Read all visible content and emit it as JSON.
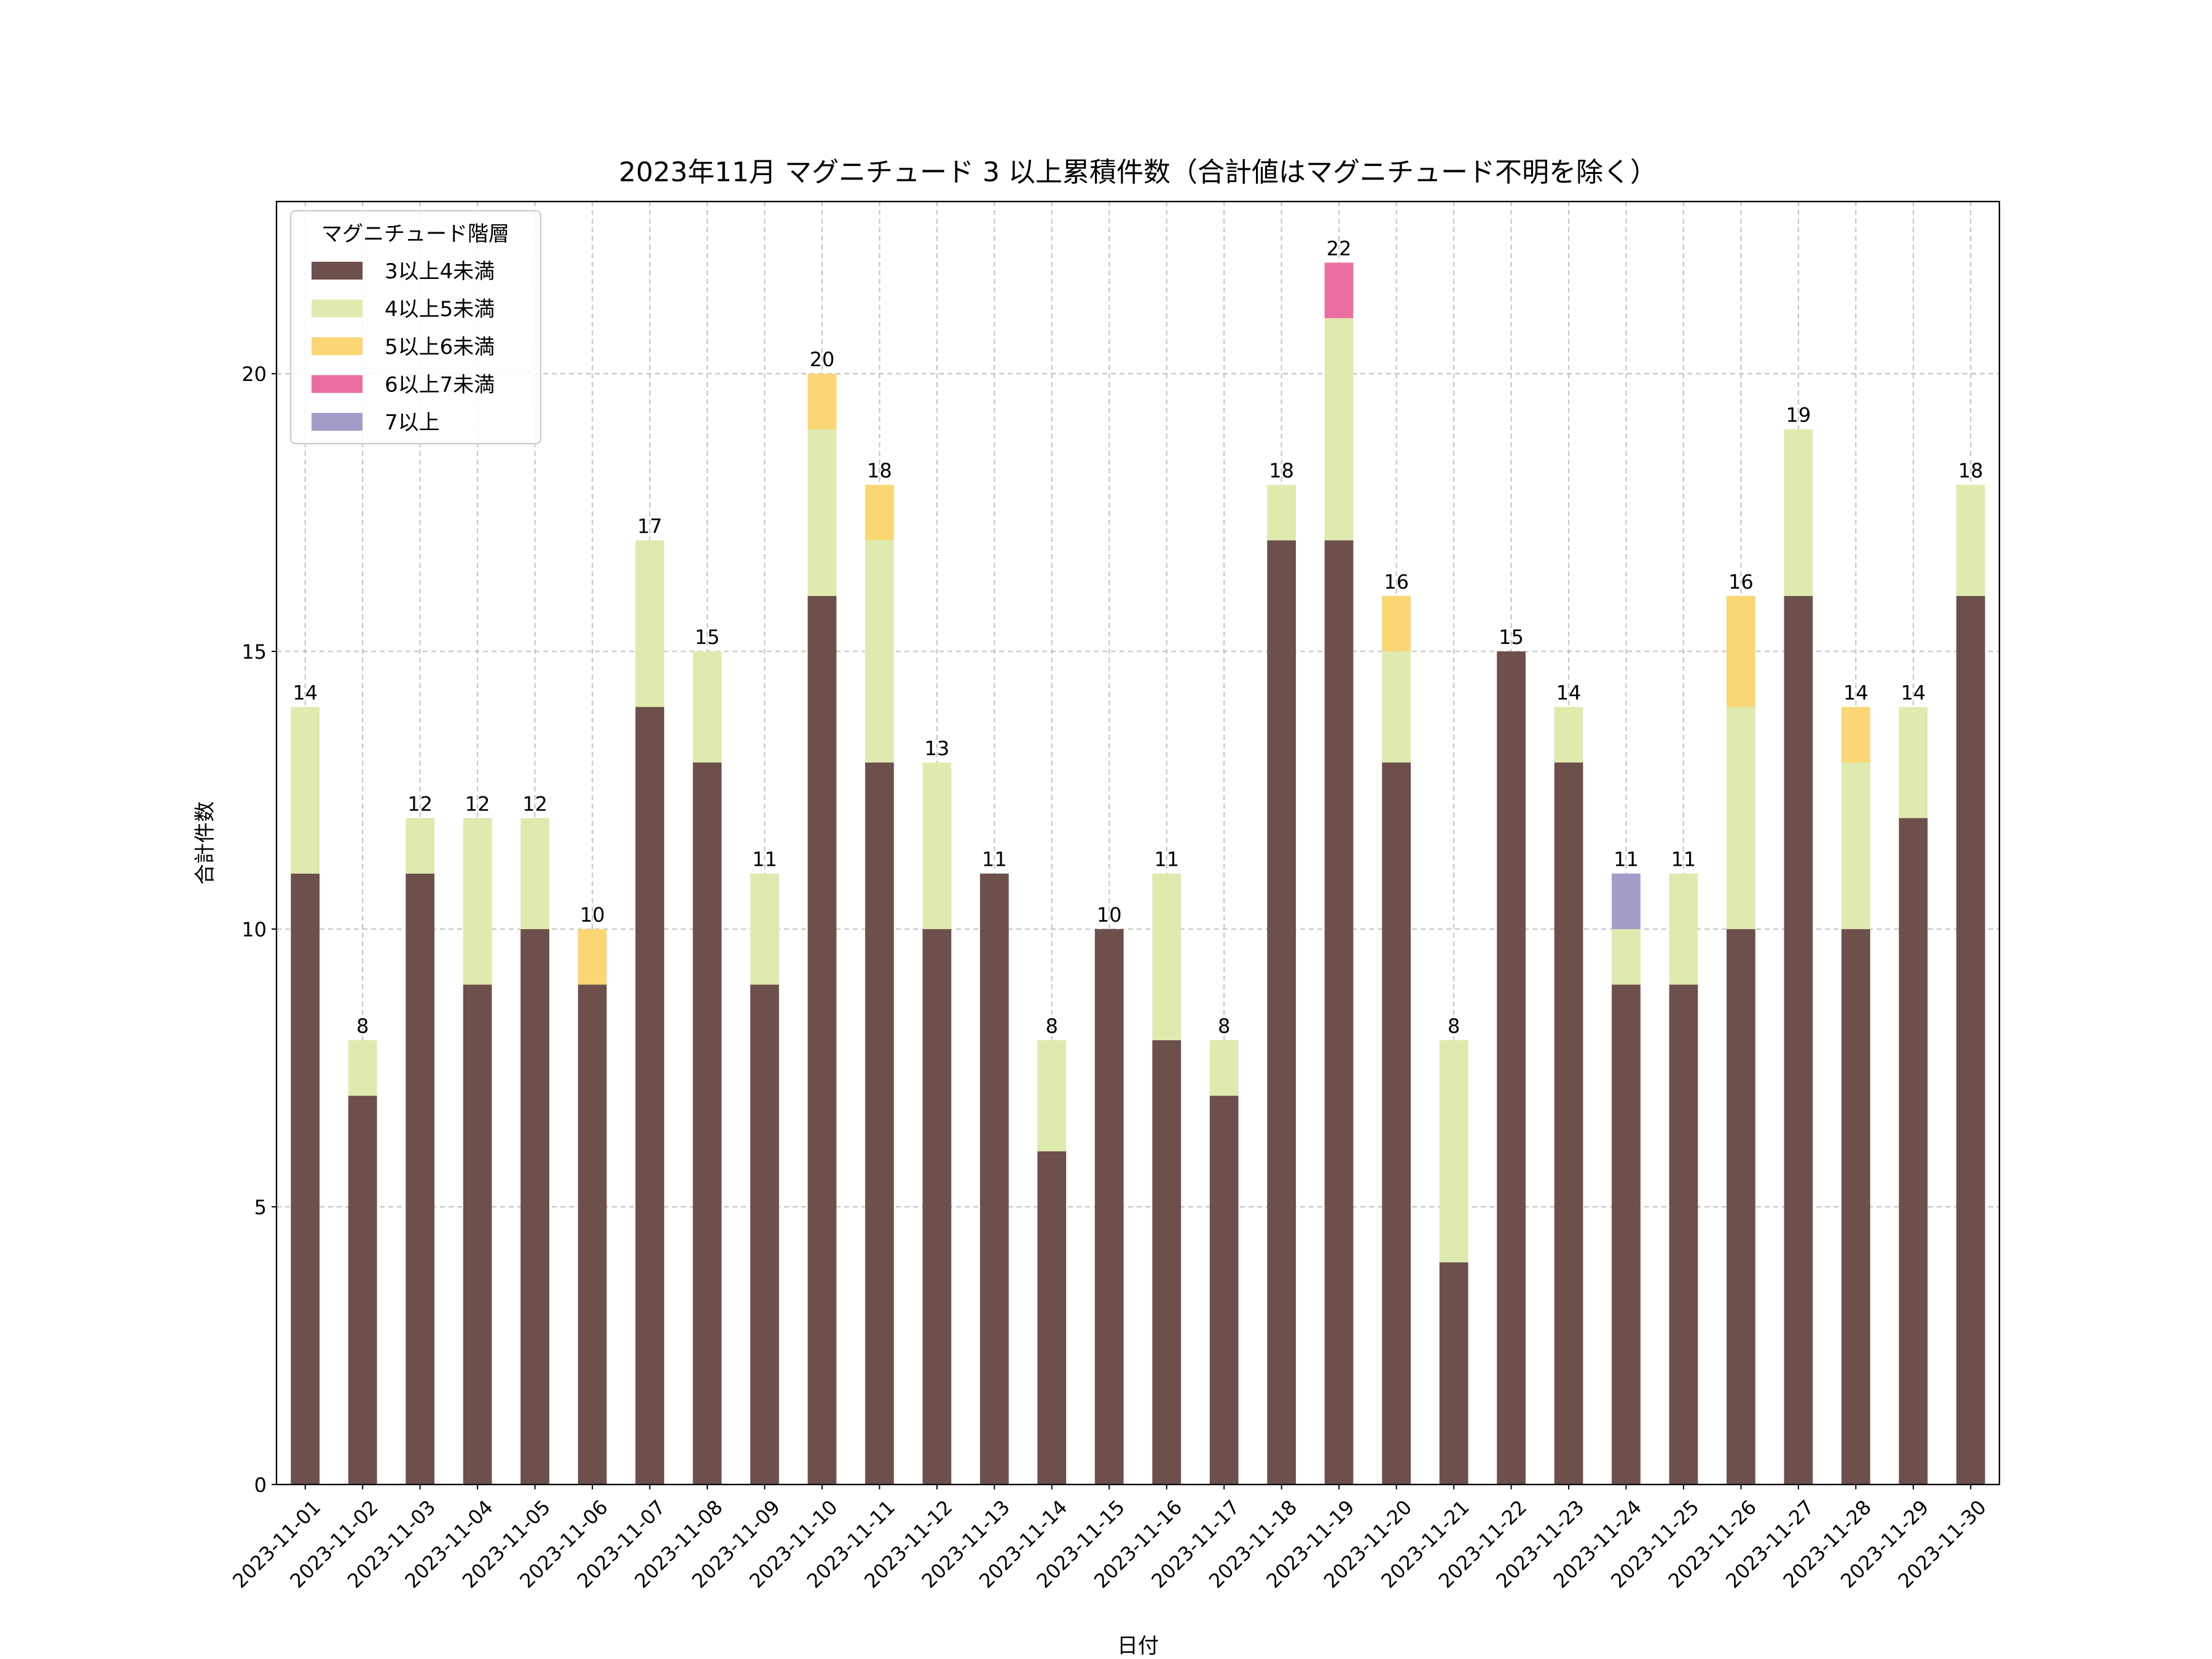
{
  "chart_data": {
    "type": "bar",
    "stacked": true,
    "title": "2023年11月 マグニチュード 3 以上累積件数（合計値はマグニチュード不明を除く）",
    "xlabel": "日付",
    "ylabel": "合計件数",
    "ylim": [
      0,
      23.1
    ],
    "yticks": [
      0,
      5,
      10,
      15,
      20
    ],
    "grid": true,
    "legend": {
      "title": "マグニチュード階層",
      "placement": "top-left"
    },
    "categories": [
      "2023-11-01",
      "2023-11-02",
      "2023-11-03",
      "2023-11-04",
      "2023-11-05",
      "2023-11-06",
      "2023-11-07",
      "2023-11-08",
      "2023-11-09",
      "2023-11-10",
      "2023-11-11",
      "2023-11-12",
      "2023-11-13",
      "2023-11-14",
      "2023-11-15",
      "2023-11-16",
      "2023-11-17",
      "2023-11-18",
      "2023-11-19",
      "2023-11-20",
      "2023-11-21",
      "2023-11-22",
      "2023-11-23",
      "2023-11-24",
      "2023-11-25",
      "2023-11-26",
      "2023-11-27",
      "2023-11-28",
      "2023-11-29",
      "2023-11-30"
    ],
    "series": [
      {
        "name": "3以上4未満",
        "color": "#6d4f4b",
        "values": [
          11,
          7,
          11,
          9,
          10,
          9,
          14,
          13,
          9,
          16,
          13,
          10,
          11,
          6,
          10,
          8,
          7,
          17,
          17,
          13,
          4,
          15,
          13,
          9,
          9,
          10,
          16,
          10,
          12,
          16
        ]
      },
      {
        "name": "4以上5未満",
        "color": "#dfeaaf",
        "values": [
          3,
          1,
          1,
          3,
          2,
          0,
          3,
          2,
          2,
          3,
          4,
          3,
          0,
          2,
          0,
          3,
          1,
          1,
          4,
          2,
          4,
          0,
          1,
          1,
          2,
          4,
          3,
          3,
          2,
          2
        ]
      },
      {
        "name": "5以上6未満",
        "color": "#fad674",
        "values": [
          0,
          0,
          0,
          0,
          0,
          1,
          0,
          0,
          0,
          1,
          1,
          0,
          0,
          0,
          0,
          0,
          0,
          0,
          0,
          1,
          0,
          0,
          0,
          0,
          0,
          2,
          0,
          1,
          0,
          0
        ]
      },
      {
        "name": "6以上7未満",
        "color": "#ec6ea0",
        "values": [
          0,
          0,
          0,
          0,
          0,
          0,
          0,
          0,
          0,
          0,
          0,
          0,
          0,
          0,
          0,
          0,
          0,
          0,
          1,
          0,
          0,
          0,
          0,
          0,
          0,
          0,
          0,
          0,
          0,
          0
        ]
      },
      {
        "name": "7以上",
        "color": "#a59bc9",
        "values": [
          0,
          0,
          0,
          0,
          0,
          0,
          0,
          0,
          0,
          0,
          0,
          0,
          0,
          0,
          0,
          0,
          0,
          0,
          0,
          0,
          0,
          0,
          0,
          1,
          0,
          0,
          0,
          0,
          0,
          0
        ]
      }
    ],
    "totals": [
      14,
      8,
      12,
      12,
      12,
      10,
      17,
      15,
      11,
      20,
      18,
      13,
      11,
      8,
      10,
      11,
      8,
      18,
      22,
      16,
      8,
      15,
      14,
      11,
      11,
      16,
      19,
      14,
      14,
      18
    ]
  }
}
